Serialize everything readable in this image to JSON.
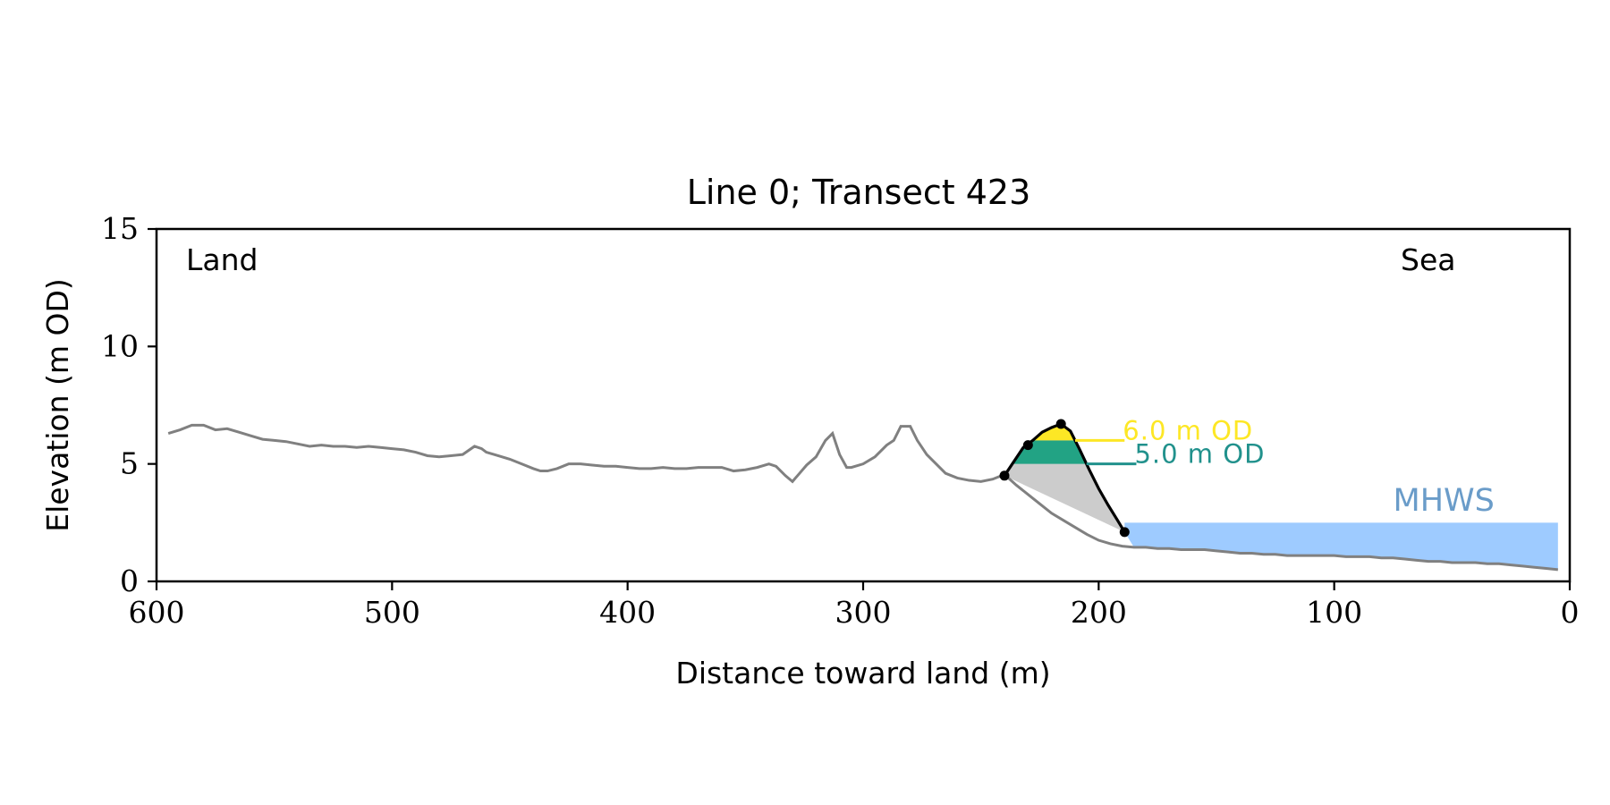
{
  "chart_data": {
    "type": "line",
    "title": "Line 0; Transect 423",
    "xlabel": "Distance toward land (m)",
    "ylabel": "Elevation (m OD)",
    "xlim": [
      600,
      0
    ],
    "ylim": [
      0,
      15
    ],
    "xticks": [
      600,
      500,
      400,
      300,
      200,
      100,
      0
    ],
    "yticks": [
      0,
      5,
      10,
      15
    ],
    "grid": false,
    "left_label": "Land",
    "right_label": "Sea",
    "colors": {
      "profile": "#808080",
      "dune": "#000000",
      "dune_fill": "#cccccc",
      "level_6": "#fde725",
      "level_5": "#21918c",
      "level_5_fill": "#22a384",
      "water": "#9ecbff",
      "mhws_text": "#6a9cc9"
    },
    "profile": {
      "x": [
        595,
        590,
        585,
        580,
        575,
        570,
        565,
        560,
        555,
        550,
        545,
        540,
        535,
        530,
        525,
        520,
        515,
        510,
        505,
        500,
        495,
        490,
        485,
        480,
        475,
        470,
        465,
        462,
        460,
        455,
        450,
        445,
        440,
        437,
        434,
        430,
        425,
        420,
        415,
        410,
        405,
        400,
        395,
        390,
        385,
        380,
        375,
        370,
        365,
        360,
        355,
        350,
        345,
        340,
        337,
        333,
        330,
        327,
        324,
        320,
        316,
        313,
        310,
        307,
        305,
        300,
        295,
        290,
        287,
        284,
        280,
        277,
        273,
        270,
        265,
        260,
        255,
        250,
        245,
        240,
        235,
        230,
        225,
        220,
        215,
        210,
        205,
        200,
        195,
        190,
        185,
        180,
        175,
        170,
        165,
        160,
        155,
        150,
        145,
        140,
        135,
        130,
        125,
        120,
        115,
        110,
        105,
        100,
        95,
        90,
        85,
        80,
        75,
        70,
        65,
        60,
        55,
        50,
        45,
        40,
        35,
        30,
        25,
        20,
        15,
        10,
        5
      ],
      "y": [
        6.3,
        6.45,
        6.65,
        6.65,
        6.45,
        6.5,
        6.35,
        6.2,
        6.05,
        6.0,
        5.95,
        5.85,
        5.75,
        5.8,
        5.75,
        5.75,
        5.7,
        5.75,
        5.7,
        5.65,
        5.6,
        5.5,
        5.35,
        5.3,
        5.35,
        5.4,
        5.75,
        5.65,
        5.5,
        5.35,
        5.2,
        5.0,
        4.8,
        4.7,
        4.7,
        4.8,
        5.0,
        5.0,
        4.95,
        4.9,
        4.9,
        4.85,
        4.8,
        4.8,
        4.85,
        4.8,
        4.8,
        4.85,
        4.85,
        4.85,
        4.7,
        4.75,
        4.85,
        5.0,
        4.9,
        4.5,
        4.25,
        4.6,
        4.95,
        5.3,
        6.0,
        6.3,
        5.4,
        4.85,
        4.85,
        5.0,
        5.3,
        5.8,
        6.0,
        6.6,
        6.6,
        6.0,
        5.4,
        5.1,
        4.6,
        4.4,
        4.3,
        4.25,
        4.35,
        4.55,
        4.1,
        3.7,
        3.3,
        2.9,
        2.6,
        2.3,
        2.0,
        1.75,
        1.6,
        1.5,
        1.45,
        1.45,
        1.4,
        1.4,
        1.35,
        1.35,
        1.35,
        1.3,
        1.25,
        1.2,
        1.2,
        1.15,
        1.15,
        1.1,
        1.1,
        1.1,
        1.1,
        1.1,
        1.05,
        1.05,
        1.05,
        1.0,
        1.0,
        0.95,
        0.9,
        0.85,
        0.85,
        0.8,
        0.8,
        0.8,
        0.75,
        0.75,
        0.7,
        0.65,
        0.6,
        0.55,
        0.5
      ]
    },
    "dune": {
      "x": [
        240,
        236,
        232,
        228,
        224,
        220,
        216,
        212,
        208,
        204,
        200,
        196,
        192,
        189
      ],
      "y": [
        4.5,
        5.1,
        5.7,
        6.0,
        6.35,
        6.55,
        6.7,
        6.4,
        5.6,
        4.75,
        3.95,
        3.25,
        2.6,
        2.1
      ],
      "points": [
        {
          "x": 240,
          "y": 4.5
        },
        {
          "x": 230,
          "y": 5.8
        },
        {
          "x": 216,
          "y": 6.7
        },
        {
          "x": 189,
          "y": 2.1
        }
      ]
    },
    "levels": [
      {
        "label": "6.0 m OD",
        "value": 6.0,
        "line_to": 189
      },
      {
        "label": "5.0 m OD",
        "value": 5.0,
        "line_to": 184
      }
    ],
    "water": {
      "label": "MHWS",
      "level": 2.5,
      "from_x": 189,
      "to_x": 5
    }
  }
}
